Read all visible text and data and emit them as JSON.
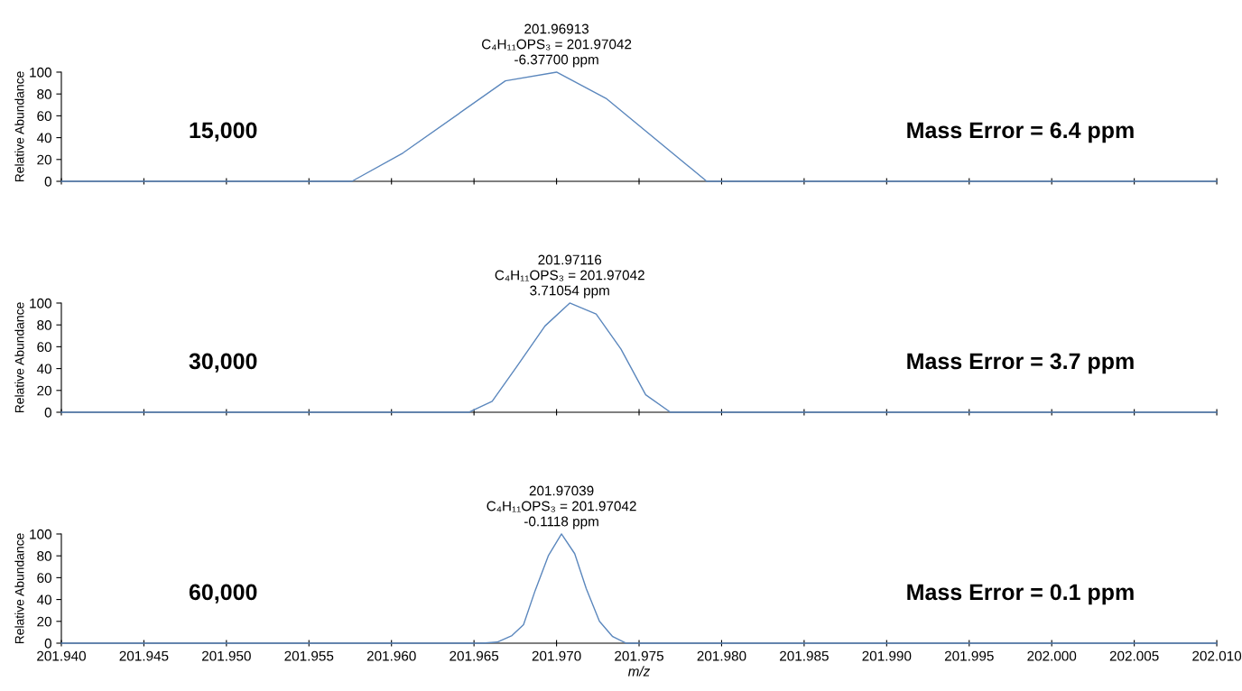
{
  "chart_data": [
    {
      "type": "line",
      "ylabel": "Relative Abundance",
      "xlim": [
        201.94,
        202.01
      ],
      "ylim": [
        0,
        100
      ],
      "yticks": [
        0,
        20,
        40,
        60,
        80,
        100
      ],
      "xticks": [
        {
          "value": 201.94,
          "label": null
        },
        {
          "value": 201.945,
          "label": null
        },
        {
          "value": 201.95,
          "label": null
        },
        {
          "value": 201.955,
          "label": null
        },
        {
          "value": 201.96,
          "label": null
        },
        {
          "value": 201.965,
          "label": null
        },
        {
          "value": 201.97,
          "label": null
        },
        {
          "value": 201.975,
          "label": null
        },
        {
          "value": 201.98,
          "label": null
        },
        {
          "value": 201.985,
          "label": null
        },
        {
          "value": 201.99,
          "label": null
        },
        {
          "value": 201.995,
          "label": null
        },
        {
          "value": 202.0,
          "label": null
        },
        {
          "value": 202.005,
          "label": null
        },
        {
          "value": 202.01,
          "label": null
        }
      ],
      "tick_labels": "y",
      "grid": false,
      "marker": "none",
      "line_style": "solid",
      "series": [
        {
          "color": "#5b87bd",
          "x": [
            201.94,
            201.9576,
            201.9607,
            201.9669,
            201.97,
            201.973,
            201.9791,
            202.01
          ],
          "values": [
            0,
            0,
            26,
            92,
            100,
            76,
            0,
            0
          ]
        }
      ],
      "annotations": [
        {
          "text": "201.96913\nC₄H₁₁OPS₃ = 201.97042\n-6.37700 ppm",
          "x": 201.97,
          "y": 100
        },
        "15,000",
        "Mass Error = 6.4 ppm"
      ]
    },
    {
      "type": "line",
      "ylabel": "Relative Abundance",
      "xlim": [
        201.94,
        202.01
      ],
      "ylim": [
        0,
        100
      ],
      "yticks": [
        0,
        20,
        40,
        60,
        80,
        100
      ],
      "xticks": [
        {
          "value": 201.94,
          "label": null
        },
        {
          "value": 201.945,
          "label": null
        },
        {
          "value": 201.95,
          "label": null
        },
        {
          "value": 201.955,
          "label": null
        },
        {
          "value": 201.96,
          "label": null
        },
        {
          "value": 201.965,
          "label": null
        },
        {
          "value": 201.97,
          "label": null
        },
        {
          "value": 201.975,
          "label": null
        },
        {
          "value": 201.98,
          "label": null
        },
        {
          "value": 201.985,
          "label": null
        },
        {
          "value": 201.99,
          "label": null
        },
        {
          "value": 201.995,
          "label": null
        },
        {
          "value": 202.0,
          "label": null
        },
        {
          "value": 202.005,
          "label": null
        },
        {
          "value": 202.01,
          "label": null
        }
      ],
      "tick_labels": "y",
      "grid": false,
      "marker": "none",
      "line_style": "solid",
      "series": [
        {
          "color": "#5b87bd",
          "x": [
            201.94,
            201.9647,
            201.9661,
            201.9676,
            201.9693,
            201.9708,
            201.9724,
            201.9739,
            201.9754,
            201.9769,
            202.01
          ],
          "values": [
            0,
            0,
            10,
            42,
            79,
            100,
            90,
            58,
            16,
            0,
            0
          ]
        }
      ],
      "annotations": [
        {
          "text": "201.97116\nC₄H₁₁OPS₃ = 201.97042\n3.71054 ppm",
          "x": 201.9708,
          "y": 100
        },
        "30,000",
        "Mass Error = 3.7 ppm"
      ]
    },
    {
      "type": "line",
      "ylabel": "Relative Abundance",
      "xlabel": "m/z",
      "xlim": [
        201.94,
        202.01
      ],
      "ylim": [
        0,
        100
      ],
      "yticks": [
        0,
        20,
        40,
        60,
        80,
        100
      ],
      "xticks": [
        {
          "value": 201.94,
          "label": "201.940"
        },
        {
          "value": 201.945,
          "label": "201.945"
        },
        {
          "value": 201.95,
          "label": "201.950"
        },
        {
          "value": 201.955,
          "label": "201.955"
        },
        {
          "value": 201.96,
          "label": "201.960"
        },
        {
          "value": 201.965,
          "label": "201.965"
        },
        {
          "value": 201.97,
          "label": "201.970"
        },
        {
          "value": 201.975,
          "label": "201.975"
        },
        {
          "value": 201.98,
          "label": "201.980"
        },
        {
          "value": 201.985,
          "label": "201.985"
        },
        {
          "value": 201.99,
          "label": "201.990"
        },
        {
          "value": 201.995,
          "label": "201.995"
        },
        {
          "value": 202.0,
          "label": "202.000"
        },
        {
          "value": 202.005,
          "label": "202.005"
        },
        {
          "value": 202.01,
          "label": "202.010"
        }
      ],
      "grid": false,
      "marker": "none",
      "line_style": "solid",
      "series": [
        {
          "color": "#5b87bd",
          "x": [
            201.94,
            201.9655,
            201.9664,
            201.9673,
            201.968,
            201.9687,
            201.9695,
            201.9703,
            201.9711,
            201.9718,
            201.9726,
            201.9734,
            201.9742,
            202.01
          ],
          "values": [
            0,
            0,
            1,
            7,
            17,
            48,
            80,
            100,
            82,
            50,
            20,
            6,
            0,
            0
          ]
        }
      ],
      "annotations": [
        {
          "text": "201.97039\nC₄H₁₁OPS₃ = 201.97042\n-0.1118 ppm",
          "x": 201.9703,
          "y": 100
        },
        "60,000",
        "Mass Error = 0.1 ppm"
      ]
    }
  ]
}
